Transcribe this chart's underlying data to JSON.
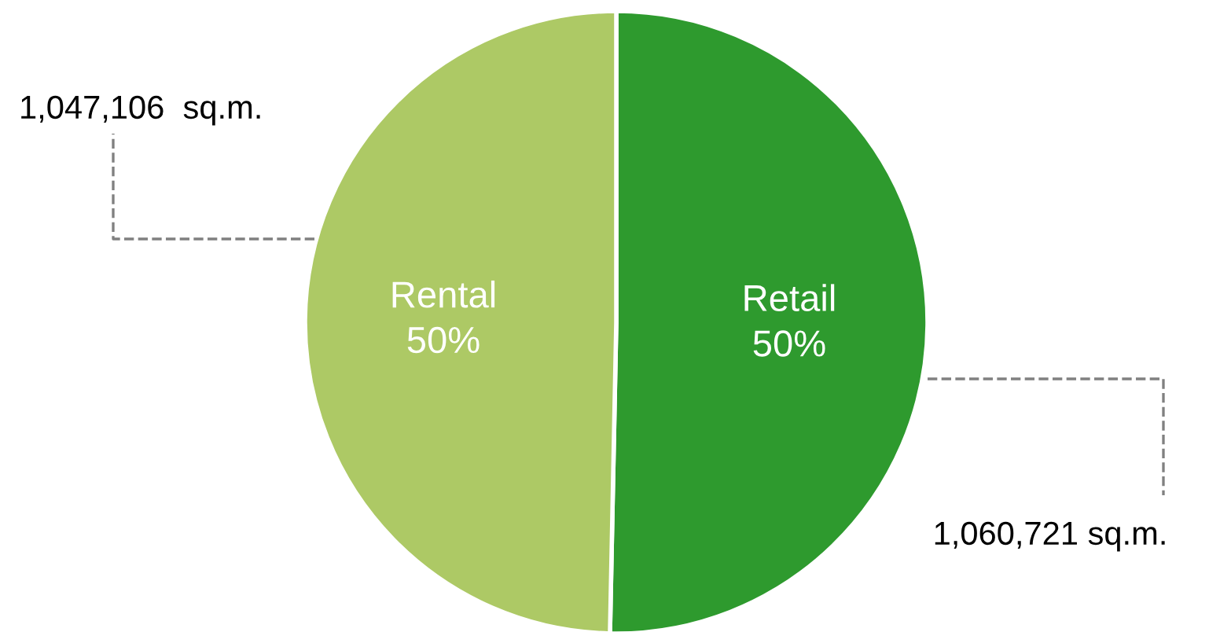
{
  "chart_data": {
    "type": "pie",
    "categories": [
      "Retail",
      "Rental"
    ],
    "values": [
      1060721,
      1047106
    ],
    "colors": [
      "#2e9a2e",
      "#adc965"
    ],
    "value_labels": [
      "1,060,721 sq.m.",
      "1,047,106  sq.m."
    ],
    "annotations": [
      {
        "text": "50%",
        "x": "Retail"
      },
      {
        "text": "50%",
        "x": "Rental"
      }
    ],
    "legend": false
  }
}
